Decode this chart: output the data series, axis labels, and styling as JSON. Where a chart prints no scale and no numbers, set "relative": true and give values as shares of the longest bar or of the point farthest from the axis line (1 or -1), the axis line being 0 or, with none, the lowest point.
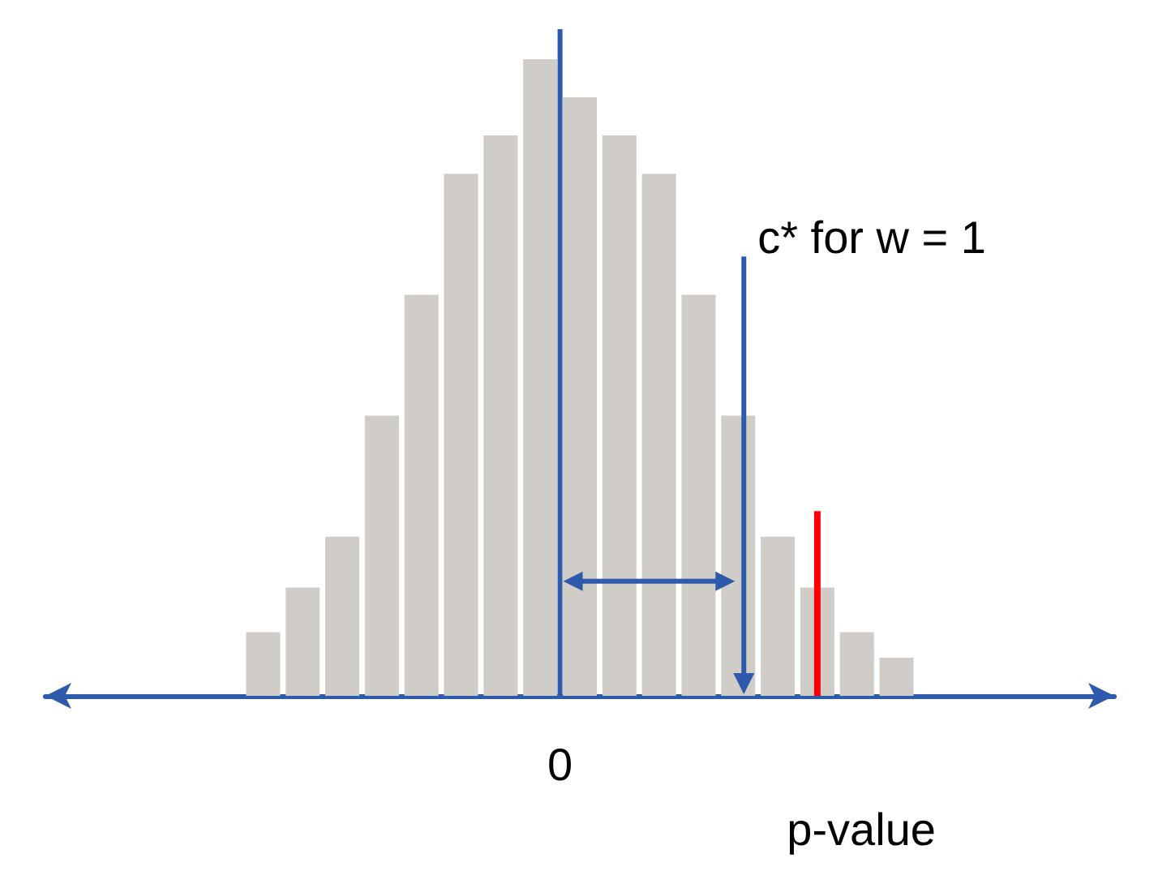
{
  "chart_data": {
    "type": "bar",
    "relative": true,
    "xlabel": "p-value",
    "color": "#d0ccc7",
    "categories": [
      null,
      null,
      null,
      null,
      null,
      null,
      null,
      null,
      null,
      null,
      null,
      null,
      null,
      null,
      null,
      null,
      null
    ],
    "values": [
      0.1,
      0.17,
      0.25,
      0.44,
      0.63,
      0.82,
      0.88,
      1,
      0.94,
      0.88,
      0.82,
      0.63,
      0.44,
      0.25,
      0.17,
      0.1,
      0.06
    ],
    "annotations": [
      "0",
      "c* for w = 1"
    ]
  }
}
